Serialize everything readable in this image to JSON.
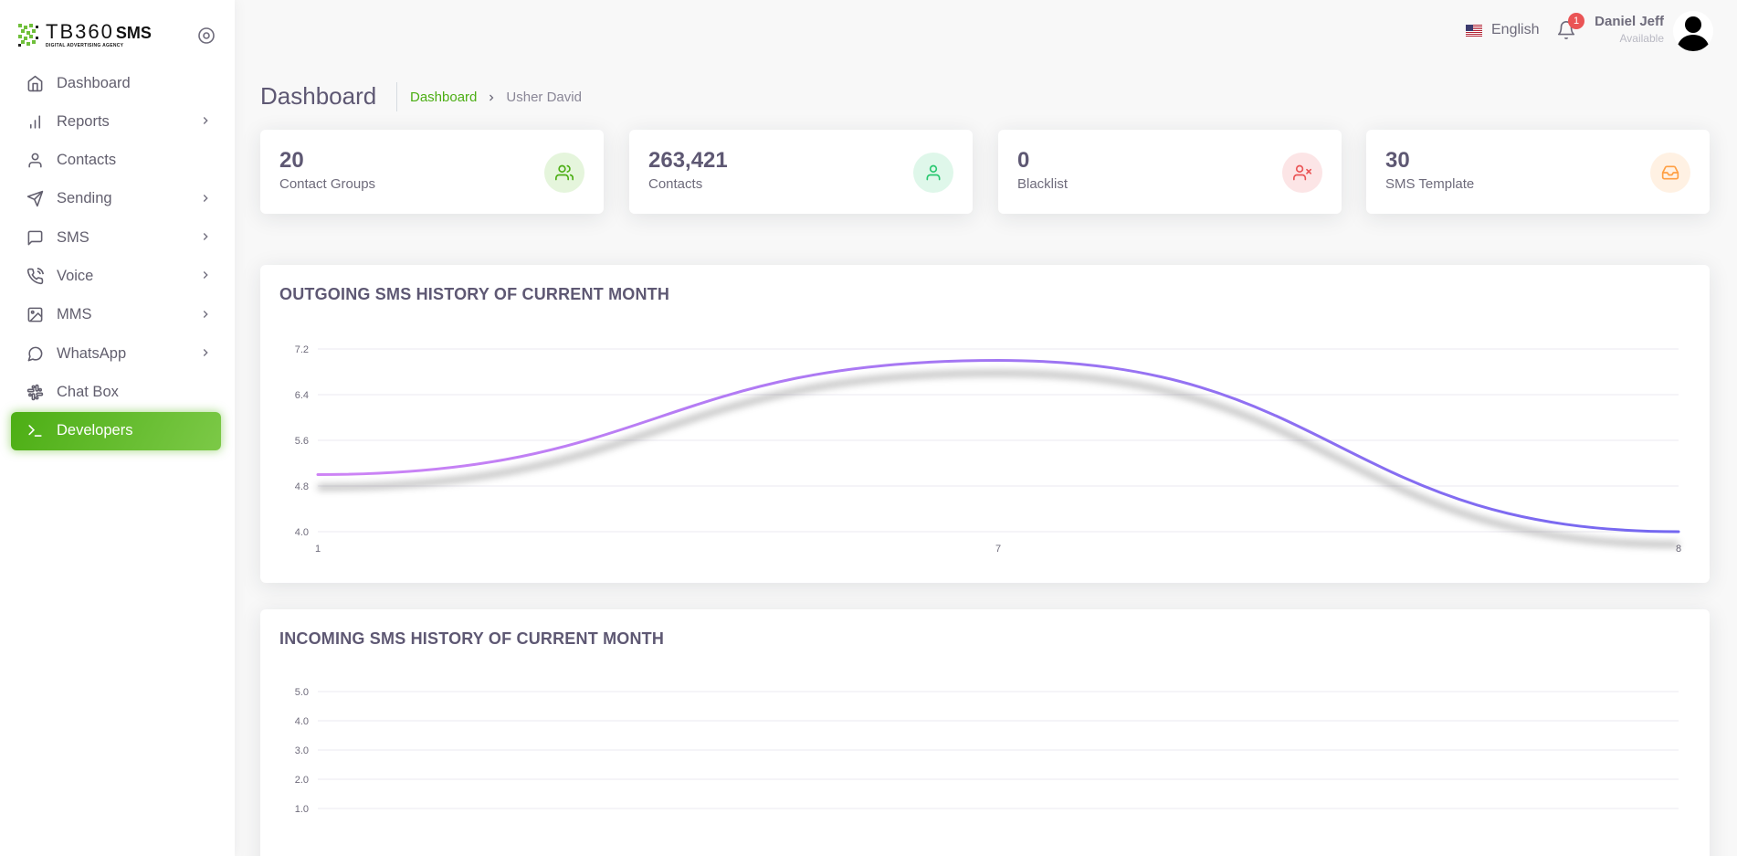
{
  "brand": {
    "name": "TB360",
    "suffix": "SMS",
    "tagline": "DIGITAL ADVERTISING AGENCY"
  },
  "sidebar": {
    "items": [
      {
        "label": "Dashboard",
        "icon": "home-icon",
        "has_children": false,
        "active": false
      },
      {
        "label": "Reports",
        "icon": "bar-chart-icon",
        "has_children": true,
        "active": false
      },
      {
        "label": "Contacts",
        "icon": "user-icon",
        "has_children": false,
        "active": false
      },
      {
        "label": "Sending",
        "icon": "send-icon",
        "has_children": true,
        "active": false
      },
      {
        "label": "SMS",
        "icon": "message-square-icon",
        "has_children": true,
        "active": false
      },
      {
        "label": "Voice",
        "icon": "phone-call-icon",
        "has_children": true,
        "active": false
      },
      {
        "label": "MMS",
        "icon": "image-icon",
        "has_children": true,
        "active": false
      },
      {
        "label": "WhatsApp",
        "icon": "message-circle-icon",
        "has_children": true,
        "active": false
      },
      {
        "label": "Chat Box",
        "icon": "slack-icon",
        "has_children": false,
        "active": false
      },
      {
        "label": "Developers",
        "icon": "terminal-icon",
        "has_children": false,
        "active": true
      }
    ]
  },
  "header": {
    "language": "English",
    "notifications_count": "1",
    "user_name": "Daniel Jeff",
    "user_status": "Available"
  },
  "page": {
    "title": "Dashboard",
    "breadcrumb": [
      "Dashboard",
      "Usher David"
    ]
  },
  "stats": [
    {
      "value": "20",
      "label": "Contact Groups",
      "icon": "users-icon",
      "color": "#28c76f"
    },
    {
      "value": "263,421",
      "label": "Contacts",
      "icon": "user-icon",
      "color": "#28c76f"
    },
    {
      "value": "0",
      "label": "Blacklist",
      "icon": "user-x-icon",
      "color": "#ea5455"
    },
    {
      "value": "30",
      "label": "SMS Template",
      "icon": "inbox-icon",
      "color": "#ff9f43"
    }
  ],
  "colors": {
    "accent": "#4cae14",
    "line_start": "#ce84f5",
    "line_end": "#7367f0"
  },
  "chart_data": [
    {
      "type": "line",
      "title": "OUTGOING SMS HISTORY OF CURRENT MONTH",
      "x": [
        "1",
        "7",
        "8"
      ],
      "series": [
        {
          "values": [
            5.0,
            7.0,
            4.0
          ]
        }
      ],
      "y_ticks": [
        "7.2",
        "6.4",
        "5.6",
        "4.8",
        "4.0"
      ],
      "ylim": [
        4.0,
        7.2
      ],
      "grid": true
    },
    {
      "type": "line",
      "title": "INCOMING SMS HISTORY OF CURRENT MONTH",
      "x": [],
      "series": [],
      "y_ticks": [
        "5.0",
        "4.0",
        "3.0",
        "2.0",
        "1.0"
      ],
      "ylim": [
        0,
        5.0
      ],
      "grid": true
    }
  ]
}
